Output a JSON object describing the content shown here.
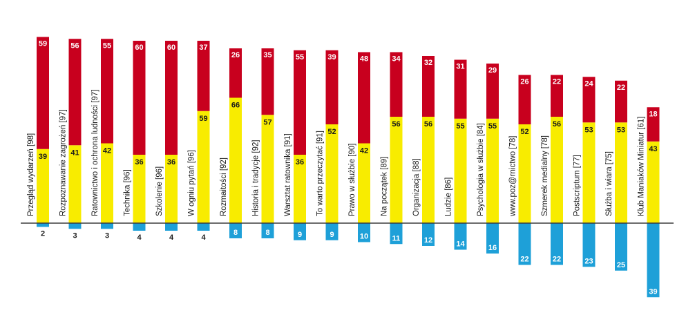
{
  "chart_data": {
    "type": "bar",
    "stacked": true,
    "title": "",
    "categories": [
      "Przegląd wydarzeń [98]",
      "Rozpoznawanie zagrożeń [97]",
      "Ratownictwo i ochrona ludności [97]",
      "Technika [96]",
      "Szkolenie [96]",
      "W ogniu pytań [96]",
      "Rozmaitości [92]",
      "Historia i tradycje [92]",
      "Warsztat ratownika [91]",
      "To warto przeczytać [91]",
      "Prawo w służbie [90]",
      "Na początek [89]",
      "Organizacja [88]",
      "Ludzie [86]",
      "Psychologia w służbie [84]",
      "www.poz@rnictwo [78]",
      "Szmerek medialny [78]",
      "Postscriptum [77]",
      "Służba i wiara [75]",
      "Klub Maniaków Miniatur [61]"
    ],
    "series": [
      {
        "color": "#f8ec00",
        "values": [
          39,
          41,
          42,
          36,
          36,
          59,
          66,
          57,
          36,
          52,
          42,
          56,
          56,
          55,
          55,
          52,
          56,
          53,
          53,
          43
        ]
      },
      {
        "color": "#c8001e",
        "values": [
          59,
          56,
          55,
          60,
          60,
          37,
          26,
          35,
          55,
          39,
          48,
          34,
          32,
          31,
          29,
          26,
          22,
          24,
          22,
          18
        ]
      },
      {
        "color": "#1ea0d8",
        "negative": true,
        "values": [
          2,
          3,
          3,
          4,
          4,
          4,
          8,
          8,
          9,
          9,
          10,
          11,
          12,
          14,
          16,
          22,
          22,
          23,
          25,
          39
        ]
      }
    ],
    "legend": "none",
    "grid": false
  }
}
